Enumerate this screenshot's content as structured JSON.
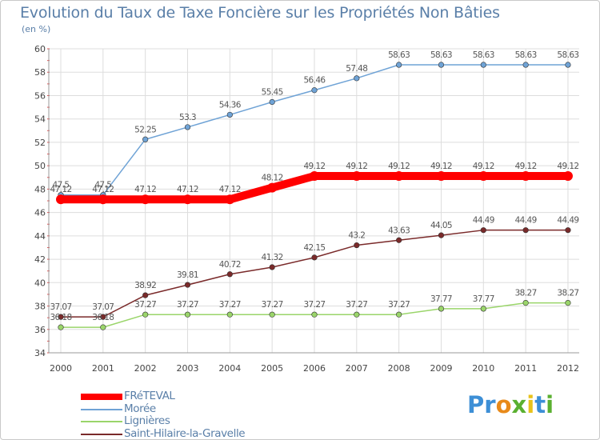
{
  "chart_data": {
    "type": "line",
    "title": "Evolution du Taux de Taxe Foncière sur les Propriétés Non Bâties",
    "subtitle": "(en %)",
    "categories": [
      "2000",
      "2001",
      "2002",
      "2003",
      "2004",
      "2005",
      "2006",
      "2007",
      "2008",
      "2009",
      "2010",
      "2011",
      "2012"
    ],
    "ylim": [
      34,
      60
    ],
    "yticks": [
      "34",
      "36",
      "38",
      "40",
      "42",
      "44",
      "46",
      "48",
      "50",
      "52",
      "54",
      "56",
      "58",
      "60"
    ],
    "grid": true,
    "legend_position": "bottom-left",
    "series": [
      {
        "name": "FRéTEVAL",
        "color": "#ff0000",
        "values": [
          47.12,
          47.12,
          47.12,
          47.12,
          47.12,
          48.12,
          49.12,
          49.12,
          49.12,
          49.12,
          49.12,
          49.12,
          49.12
        ],
        "labels": [
          "47.12",
          "47.12",
          "47.12",
          "47.12",
          "47.12",
          "48.12",
          "49.12",
          "49.12",
          "49.12",
          "49.12",
          "49.12",
          "49.12",
          "49.12"
        ]
      },
      {
        "name": "Morée",
        "color": "#6fa3d6",
        "values": [
          47.5,
          47.5,
          52.25,
          53.3,
          54.36,
          55.45,
          56.46,
          57.48,
          58.63,
          58.63,
          58.63,
          58.63,
          58.63
        ],
        "labels": [
          "47.5",
          "47.5",
          "52.25",
          "53.3",
          "54.36",
          "55.45",
          "56.46",
          "57.48",
          "58.63",
          "58.63",
          "58.63",
          "58.63",
          "58.63"
        ]
      },
      {
        "name": "Lignières",
        "color": "#9ad56a",
        "values": [
          36.18,
          36.18,
          37.27,
          37.27,
          37.27,
          37.27,
          37.27,
          37.27,
          37.27,
          37.77,
          37.77,
          38.27,
          38.27
        ],
        "labels": [
          "36.18",
          "36.18",
          "37.27",
          "37.27",
          "37.27",
          "37.27",
          "37.27",
          "37.27",
          "37.27",
          "37.77",
          "37.77",
          "38.27",
          "38.27"
        ]
      },
      {
        "name": "Saint-Hilaire-la-Gravelle",
        "color": "#7a2a2a",
        "values": [
          37.07,
          37.07,
          38.92,
          39.81,
          40.72,
          41.32,
          42.15,
          43.2,
          43.63,
          44.05,
          44.49,
          44.49,
          44.49
        ],
        "labels": [
          "37.07",
          "37.07",
          "38.92",
          "39.81",
          "40.72",
          "41.32",
          "42.15",
          "43.2",
          "43.63",
          "44.05",
          "44.49",
          "44.49",
          "44.49"
        ]
      }
    ]
  },
  "brand": {
    "letters": [
      {
        "ch": "P",
        "color": "#3d8fd6"
      },
      {
        "ch": "r",
        "color": "#3d8fd6"
      },
      {
        "ch": "o",
        "color": "#e88a1a"
      },
      {
        "ch": "x",
        "color": "#5ab030"
      },
      {
        "ch": "i",
        "color": "#e8c21a"
      },
      {
        "ch": "t",
        "color": "#3d8fd6"
      },
      {
        "ch": "i",
        "color": "#5ab030"
      }
    ]
  }
}
